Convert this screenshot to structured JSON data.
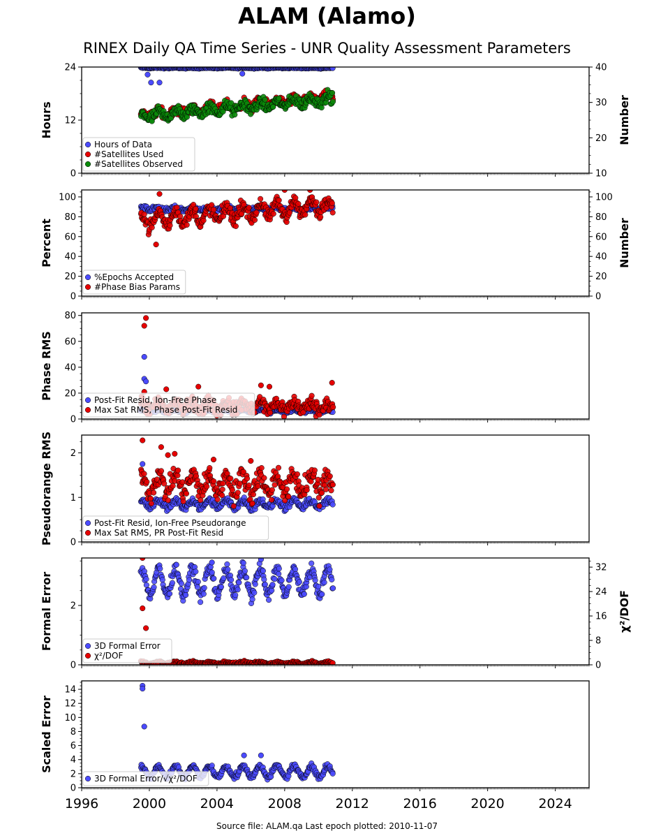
{
  "title": "ALAM (Alamo)",
  "subtitle": "RINEX Daily QA Time Series - UNR Quality Assessment Parameters",
  "footer": "Source file: ALAM.qa Last epoch plotted: 2010-11-07",
  "chart_data": {
    "type": "scatter",
    "x_axis": {
      "xlim": [
        1996,
        2026
      ],
      "ticks": [
        1996,
        2000,
        2004,
        2008,
        2012,
        2016,
        2020,
        2024
      ],
      "data_range": [
        1999.5,
        2010.85
      ]
    },
    "panels": [
      {
        "id": "hours",
        "left_label": "Hours",
        "right_label": "Number",
        "left_ylim": [
          0,
          24
        ],
        "left_ticks": [
          0,
          12,
          24
        ],
        "right_ylim": [
          10,
          40
        ],
        "right_ticks": [
          10,
          20,
          30,
          40
        ],
        "legend": [
          "Hours of Data",
          "#Satellites Used",
          "#Satellites Observed"
        ],
        "series": [
          {
            "name": "Hours of Data",
            "color": "#4b4bff",
            "axis": "left",
            "base": 23.8,
            "base_end": 23.8,
            "amplitude": 0.05,
            "noise": 0.1,
            "outliers": [
              [
                2000.1,
                20.5
              ],
              [
                2000.6,
                20.5
              ],
              [
                1999.9,
                22.3
              ],
              [
                2005.5,
                22.5
              ]
            ]
          },
          {
            "name": "#Satellites Used",
            "color": "#e60000",
            "axis": "right",
            "base": 26.5,
            "base_end": 31.5,
            "amplitude": 0.8,
            "noise": 1.0,
            "outliers": [
              [
                2010.8,
                32.0
              ]
            ]
          },
          {
            "name": "#Satellites Observed",
            "color": "#0a8a0a",
            "axis": "right",
            "base": 26.0,
            "base_end": 31.0,
            "amplitude": 0.9,
            "noise": 1.2,
            "outliers": []
          }
        ]
      },
      {
        "id": "percent",
        "left_label": "Percent",
        "right_label": "Number",
        "left_ylim": [
          0,
          107
        ],
        "left_ticks": [
          0,
          20,
          40,
          60,
          80,
          100
        ],
        "right_ylim": [
          0,
          107
        ],
        "right_ticks": [
          0,
          20,
          40,
          60,
          80,
          100
        ],
        "legend": [
          "%Epochs Accepted",
          "#Phase Bias Params"
        ],
        "series": [
          {
            "name": "%Epochs Accepted",
            "color": "#4b4bff",
            "axis": "left",
            "base": 88,
            "base_end": 88,
            "amplitude": 1,
            "noise": 2,
            "outliers": []
          },
          {
            "name": "#Phase Bias Params",
            "color": "#e60000",
            "axis": "right",
            "base": 76,
            "base_end": 92,
            "amplitude": 7,
            "noise": 5,
            "outliers": [
              [
                2000.6,
                103
              ],
              [
                2000.4,
                52
              ],
              [
                2008.0,
                107
              ],
              [
                2009.5,
                107
              ]
            ]
          }
        ]
      },
      {
        "id": "phase",
        "left_label": "Phase RMS",
        "left_ylim": [
          0,
          82
        ],
        "left_ticks": [
          0,
          20,
          40,
          60,
          80
        ],
        "legend": [
          "Post-Fit Resid, Ion-Free Phase",
          "Max Sat RMS, Phase Post-Fit Resid"
        ],
        "series": [
          {
            "name": "Post-Fit Resid, Ion-Free Phase",
            "color": "#4b4bff",
            "axis": "left",
            "base": 6,
            "base_end": 6,
            "amplitude": 1,
            "noise": 0.8,
            "outliers": [
              [
                1999.7,
                48
              ],
              [
                1999.7,
                31
              ],
              [
                1999.8,
                29
              ]
            ]
          },
          {
            "name": "Max Sat RMS, Phase Post-Fit Resid",
            "color": "#e60000",
            "axis": "left",
            "base": 10,
            "base_end": 10,
            "amplitude": 3,
            "noise": 4,
            "outliers": [
              [
                1999.8,
                78
              ],
              [
                1999.7,
                72
              ],
              [
                1999.7,
                21
              ],
              [
                2001.0,
                23
              ],
              [
                2002.9,
                25
              ],
              [
                2006.6,
                26
              ],
              [
                2007.1,
                25
              ],
              [
                2010.8,
                28
              ]
            ]
          }
        ]
      },
      {
        "id": "pseudorange",
        "left_label": "Pseudorange RMS",
        "left_ylim": [
          0,
          2.4
        ],
        "left_ticks": [
          0,
          1,
          2
        ],
        "legend": [
          "Post-Fit Resid, Ion-Free Pseudorange",
          "Max Sat RMS, PR Post-Fit Resid"
        ],
        "series": [
          {
            "name": "Post-Fit Resid, Ion-Free Pseudorange",
            "color": "#4b4bff",
            "axis": "left",
            "base": 0.85,
            "base_end": 0.85,
            "amplitude": 0.08,
            "noise": 0.06,
            "outliers": [
              [
                1999.6,
                1.75
              ]
            ]
          },
          {
            "name": "Max Sat RMS, PR Post-Fit Resid",
            "color": "#e60000",
            "axis": "left",
            "base": 1.3,
            "base_end": 1.3,
            "amplitude": 0.2,
            "noise": 0.18,
            "outliers": [
              [
                1999.6,
                2.28
              ],
              [
                2000.7,
                2.13
              ],
              [
                2001.5,
                1.98
              ],
              [
                2001.1,
                1.95
              ],
              [
                2003.8,
                1.85
              ],
              [
                2006.0,
                1.82
              ]
            ]
          }
        ]
      },
      {
        "id": "formal",
        "left_label": "Formal Error",
        "right_label": "χ²/DOF",
        "left_ylim": [
          0,
          3.6
        ],
        "left_ticks": [
          0,
          2
        ],
        "right_ylim": [
          0,
          35
        ],
        "right_ticks": [
          0,
          8,
          16,
          24,
          32
        ],
        "legend": [
          "3D Formal Error",
          "χ²/DOF"
        ],
        "series": [
          {
            "name": "3D Formal Error",
            "color": "#4b4bff",
            "axis": "left",
            "base": 2.8,
            "base_end": 2.8,
            "amplitude": 0.45,
            "noise": 0.15,
            "outliers": [
              [
                2006.6,
                3.55
              ],
              [
                2003.7,
                3.45
              ]
            ]
          },
          {
            "name": "χ²/DOF",
            "color": "#e60000",
            "axis": "right",
            "base": 0.6,
            "base_end": 0.6,
            "amplitude": 0.3,
            "noise": 0.3,
            "outliers": [
              [
                1999.6,
                35
              ],
              [
                1999.6,
                18.5
              ],
              [
                1999.8,
                12
              ]
            ]
          }
        ]
      },
      {
        "id": "scaled",
        "left_label": "Scaled Error",
        "left_ylim": [
          0,
          15.2
        ],
        "left_ticks": [
          0,
          2,
          4,
          6,
          8,
          10,
          12,
          14
        ],
        "legend": [
          "3D Formal Error/√χ²/DOF"
        ],
        "series": [
          {
            "name": "3D Formal Error/√χ²/DOF",
            "color": "#4b4bff",
            "axis": "left",
            "base": 2.3,
            "base_end": 2.3,
            "amplitude": 0.8,
            "noise": 0.3,
            "outliers": [
              [
                1999.6,
                14.5
              ],
              [
                1999.6,
                14.1
              ],
              [
                1999.7,
                8.7
              ],
              [
                2005.6,
                4.6
              ],
              [
                2006.6,
                4.6
              ]
            ]
          }
        ]
      }
    ]
  }
}
